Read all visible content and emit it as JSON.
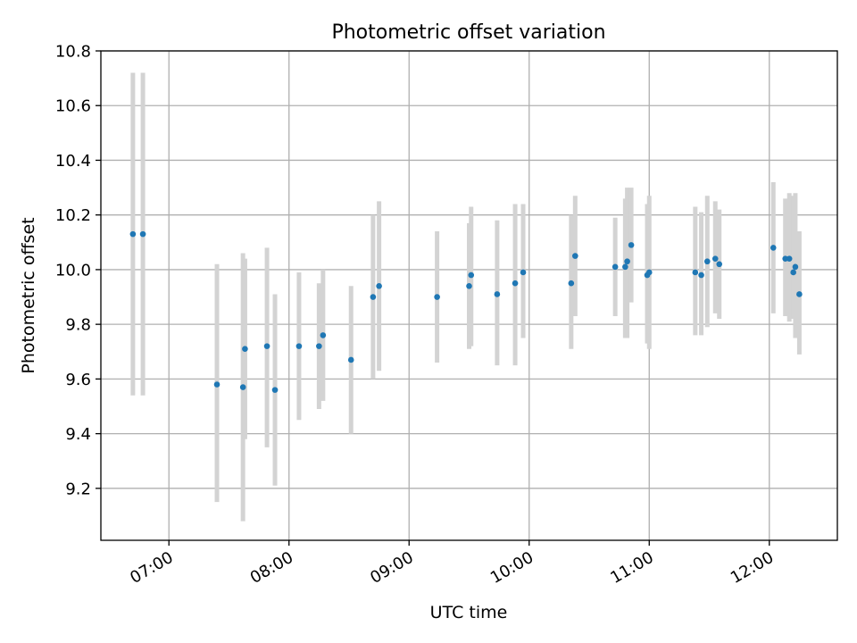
{
  "chart_data": {
    "type": "scatter",
    "title": "Photometric offset variation",
    "xlabel": "UTC time",
    "ylabel": "Photometric offset",
    "x_unit": "UTC time of day",
    "xlim": [
      "06:26",
      "12:34"
    ],
    "ylim": [
      9.01,
      10.8
    ],
    "x_ticks": [
      "07:00",
      "08:00",
      "09:00",
      "10:00",
      "11:00",
      "12:00"
    ],
    "y_ticks": [
      "9.2",
      "9.4",
      "9.6",
      "9.8",
      "10.0",
      "10.2",
      "10.4",
      "10.6",
      "10.8"
    ],
    "grid": true,
    "colors": {
      "point": "#1f77b4",
      "errorbar": "#d3d3d3",
      "grid": "#b0b0b0"
    },
    "series": [
      {
        "points": [
          {
            "x": "06:42",
            "y": 10.13,
            "ylow": 9.54,
            "yhigh": 10.72
          },
          {
            "x": "06:47",
            "y": 10.13,
            "ylow": 9.54,
            "yhigh": 10.72
          },
          {
            "x": "07:24",
            "y": 9.58,
            "ylow": 9.15,
            "yhigh": 10.02
          },
          {
            "x": "07:37",
            "y": 9.57,
            "ylow": 9.08,
            "yhigh": 10.06
          },
          {
            "x": "07:38",
            "y": 9.71,
            "ylow": 9.38,
            "yhigh": 10.04
          },
          {
            "x": "07:49",
            "y": 9.72,
            "ylow": 9.35,
            "yhigh": 10.08
          },
          {
            "x": "07:53",
            "y": 9.56,
            "ylow": 9.21,
            "yhigh": 9.91
          },
          {
            "x": "08:05",
            "y": 9.72,
            "ylow": 9.45,
            "yhigh": 9.99
          },
          {
            "x": "08:15",
            "y": 9.72,
            "ylow": 9.49,
            "yhigh": 9.95
          },
          {
            "x": "08:17",
            "y": 9.76,
            "ylow": 9.52,
            "yhigh": 10.0
          },
          {
            "x": "08:31",
            "y": 9.67,
            "ylow": 9.4,
            "yhigh": 9.94
          },
          {
            "x": "08:42",
            "y": 9.9,
            "ylow": 9.6,
            "yhigh": 10.2
          },
          {
            "x": "08:45",
            "y": 9.94,
            "ylow": 9.63,
            "yhigh": 10.25
          },
          {
            "x": "09:14",
            "y": 9.9,
            "ylow": 9.66,
            "yhigh": 10.14
          },
          {
            "x": "09:30",
            "y": 9.94,
            "ylow": 9.71,
            "yhigh": 10.17
          },
          {
            "x": "09:31",
            "y": 9.98,
            "ylow": 9.72,
            "yhigh": 10.23
          },
          {
            "x": "09:44",
            "y": 9.91,
            "ylow": 9.65,
            "yhigh": 10.18
          },
          {
            "x": "09:53",
            "y": 9.95,
            "ylow": 9.65,
            "yhigh": 10.24
          },
          {
            "x": "09:57",
            "y": 9.99,
            "ylow": 9.75,
            "yhigh": 10.24
          },
          {
            "x": "10:21",
            "y": 9.95,
            "ylow": 9.71,
            "yhigh": 10.2
          },
          {
            "x": "10:23",
            "y": 10.05,
            "ylow": 9.83,
            "yhigh": 10.27
          },
          {
            "x": "10:43",
            "y": 10.01,
            "ylow": 9.83,
            "yhigh": 10.19
          },
          {
            "x": "10:48",
            "y": 10.01,
            "ylow": 9.75,
            "yhigh": 10.26
          },
          {
            "x": "10:49",
            "y": 10.03,
            "ylow": 9.75,
            "yhigh": 10.3
          },
          {
            "x": "10:51",
            "y": 10.09,
            "ylow": 9.88,
            "yhigh": 10.3
          },
          {
            "x": "10:59",
            "y": 9.98,
            "ylow": 9.73,
            "yhigh": 10.24
          },
          {
            "x": "11:00",
            "y": 9.99,
            "ylow": 9.71,
            "yhigh": 10.27
          },
          {
            "x": "11:23",
            "y": 9.99,
            "ylow": 9.76,
            "yhigh": 10.23
          },
          {
            "x": "11:26",
            "y": 9.98,
            "ylow": 9.76,
            "yhigh": 10.21
          },
          {
            "x": "11:29",
            "y": 10.03,
            "ylow": 9.79,
            "yhigh": 10.27
          },
          {
            "x": "11:33",
            "y": 10.04,
            "ylow": 9.84,
            "yhigh": 10.25
          },
          {
            "x": "11:35",
            "y": 10.02,
            "ylow": 9.82,
            "yhigh": 10.22
          },
          {
            "x": "12:02",
            "y": 10.08,
            "ylow": 9.84,
            "yhigh": 10.32
          },
          {
            "x": "12:08",
            "y": 10.04,
            "ylow": 9.83,
            "yhigh": 10.26
          },
          {
            "x": "12:10",
            "y": 10.04,
            "ylow": 9.81,
            "yhigh": 10.28
          },
          {
            "x": "12:12",
            "y": 9.99,
            "ylow": 9.82,
            "yhigh": 10.27
          },
          {
            "x": "12:13",
            "y": 10.01,
            "ylow": 9.75,
            "yhigh": 10.28
          },
          {
            "x": "12:15",
            "y": 9.91,
            "ylow": 9.69,
            "yhigh": 10.14
          }
        ]
      }
    ]
  }
}
